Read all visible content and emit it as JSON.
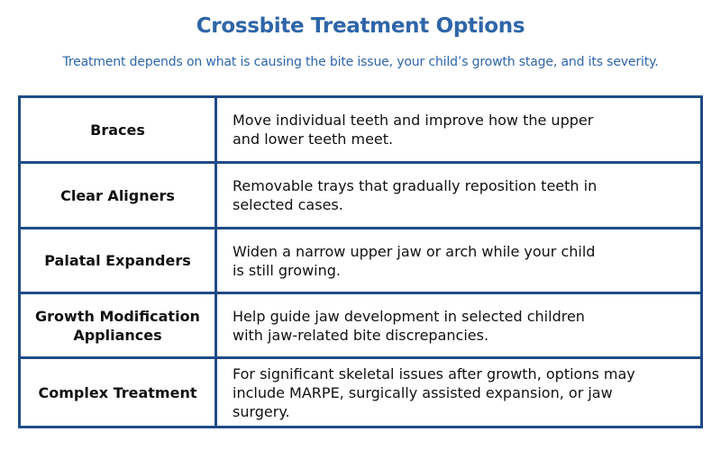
{
  "header": {
    "title": "Crossbite Treatment Options",
    "subtitle": "Treatment depends on what is causing the bite issue, your child’s growth stage, and its severity."
  },
  "table": {
    "rows": [
      {
        "treatment_lines": [
          "Braces"
        ],
        "description_lines": [
          "Move individual teeth and improve how the upper",
          "and lower teeth meet."
        ]
      },
      {
        "treatment_lines": [
          "Clear Aligners"
        ],
        "description_lines": [
          "Removable trays that gradually reposition teeth in",
          "selected cases."
        ]
      },
      {
        "treatment_lines": [
          "Palatal Expanders"
        ],
        "description_lines": [
          "Widen a narrow upper jaw or arch while your child",
          "is still growing."
        ]
      },
      {
        "treatment_lines": [
          "Growth Modification",
          "Appliances"
        ],
        "description_lines": [
          "Help guide jaw development in selected children",
          "with jaw-related bite discrepancies."
        ]
      },
      {
        "treatment_lines": [
          "Complex Treatment"
        ],
        "description_lines": [
          "For significant skeletal issues after growth, options may",
          "include MARPE, surgically assisted expansion, or jaw",
          "surgery."
        ]
      }
    ]
  },
  "colors": {
    "heading": "#2e65a8",
    "border": "#1f4b87",
    "text": "#111111"
  }
}
